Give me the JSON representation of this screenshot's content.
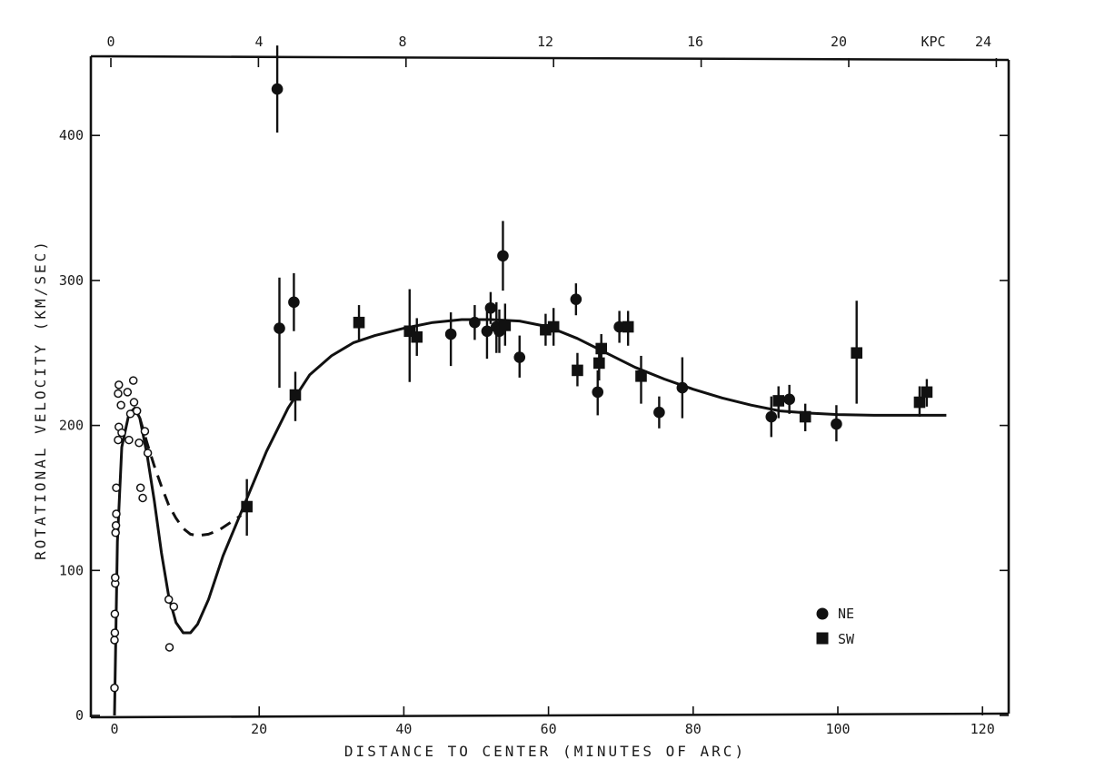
{
  "chart_data": {
    "type": "scatter",
    "xlabel": "DISTANCE TO CENTER (MINUTES OF ARC)",
    "ylabel": "ROTATIONAL VELOCITY (KM/SEC)",
    "x_ticks": [
      "0",
      "20",
      "40",
      "60",
      "80",
      "100",
      "120"
    ],
    "y_ticks": [
      "0",
      "100",
      "200",
      "300",
      "400"
    ],
    "top_axis": {
      "ticks": [
        "0",
        "4",
        "8",
        "12",
        "16",
        "20",
        "KPC",
        "24"
      ],
      "kpc_values": [
        0,
        4,
        8,
        12,
        16,
        20,
        24
      ],
      "unit_label": "KPC"
    },
    "xlim": [
      -2,
      121
    ],
    "ylim": [
      0,
      450
    ],
    "legend_position": "bottom-right",
    "series": [
      {
        "name": "NE",
        "marker": "circle",
        "points": [
          {
            "x": 22.5,
            "y": 432,
            "err": [
              402,
              462
            ]
          },
          {
            "x": 22.8,
            "y": 267,
            "err": [
              226,
              302
            ]
          },
          {
            "x": 24.8,
            "y": 285,
            "err": [
              265,
              305
            ]
          },
          {
            "x": 46.5,
            "y": 263,
            "err": [
              241,
              278
            ]
          },
          {
            "x": 49.8,
            "y": 271,
            "err": [
              259,
              283
            ]
          },
          {
            "x": 51.5,
            "y": 265,
            "err": [
              246,
              280
            ]
          },
          {
            "x": 52.0,
            "y": 281,
            "err": [
              270,
              292
            ]
          },
          {
            "x": 52.8,
            "y": 268,
            "err": [
              250,
              285
            ]
          },
          {
            "x": 53.2,
            "y": 265,
            "err": [
              250,
              280
            ]
          },
          {
            "x": 53.7,
            "y": 317,
            "err": [
              293,
              341
            ]
          },
          {
            "x": 56.0,
            "y": 247,
            "err": [
              233,
              262
            ]
          },
          {
            "x": 63.8,
            "y": 287,
            "err": [
              276,
              298
            ]
          },
          {
            "x": 66.8,
            "y": 223,
            "err": [
              207,
              238
            ]
          },
          {
            "x": 69.8,
            "y": 268,
            "err": [
              257,
              279
            ]
          },
          {
            "x": 75.3,
            "y": 209,
            "err": [
              198,
              220
            ]
          },
          {
            "x": 78.5,
            "y": 226,
            "err": [
              205,
              247
            ]
          },
          {
            "x": 90.8,
            "y": 206,
            "err": [
              192,
              220
            ]
          },
          {
            "x": 93.3,
            "y": 218,
            "err": [
              208,
              228
            ]
          },
          {
            "x": 99.8,
            "y": 201,
            "err": [
              189,
              214
            ]
          }
        ]
      },
      {
        "name": "SW",
        "marker": "square",
        "points": [
          {
            "x": 18.3,
            "y": 144,
            "err": [
              124,
              163
            ]
          },
          {
            "x": 25.0,
            "y": 221,
            "err": [
              203,
              237
            ]
          },
          {
            "x": 33.8,
            "y": 271,
            "err": [
              259,
              283
            ]
          },
          {
            "x": 40.8,
            "y": 265,
            "err": [
              230,
              294
            ]
          },
          {
            "x": 41.8,
            "y": 261,
            "err": [
              248,
              274
            ]
          },
          {
            "x": 54.0,
            "y": 269,
            "err": [
              255,
              284
            ]
          },
          {
            "x": 59.6,
            "y": 266,
            "err": [
              255,
              277
            ]
          },
          {
            "x": 60.7,
            "y": 268,
            "err": [
              255,
              281
            ]
          },
          {
            "x": 64.0,
            "y": 238,
            "err": [
              227,
              250
            ]
          },
          {
            "x": 67.0,
            "y": 243,
            "err": [
              231,
              255
            ]
          },
          {
            "x": 67.3,
            "y": 253,
            "err": [
              244,
              263
            ]
          },
          {
            "x": 71.0,
            "y": 268,
            "err": [
              255,
              279
            ]
          },
          {
            "x": 72.8,
            "y": 234,
            "err": [
              215,
              248
            ]
          },
          {
            "x": 91.8,
            "y": 217,
            "err": [
              205,
              227
            ]
          },
          {
            "x": 95.5,
            "y": 206,
            "err": [
              196,
              215
            ]
          },
          {
            "x": 102.6,
            "y": 250,
            "err": [
              215,
              286
            ]
          },
          {
            "x": 111.3,
            "y": 216,
            "err": [
              206,
              227
            ]
          },
          {
            "x": 112.3,
            "y": 223,
            "err": [
              213,
              232
            ]
          }
        ]
      },
      {
        "name": "",
        "marker": "open-circle",
        "points": [
          {
            "x": 0.0,
            "y": 19
          },
          {
            "x": 0.0,
            "y": 52
          },
          {
            "x": 0.05,
            "y": 57
          },
          {
            "x": 0.05,
            "y": 70
          },
          {
            "x": 0.1,
            "y": 91
          },
          {
            "x": 0.1,
            "y": 95
          },
          {
            "x": 0.15,
            "y": 126
          },
          {
            "x": 0.2,
            "y": 131
          },
          {
            "x": 0.25,
            "y": 139
          },
          {
            "x": 0.25,
            "y": 157
          },
          {
            "x": 0.5,
            "y": 190
          },
          {
            "x": 0.6,
            "y": 199
          },
          {
            "x": 0.5,
            "y": 222
          },
          {
            "x": 0.6,
            "y": 228
          },
          {
            "x": 0.9,
            "y": 214
          },
          {
            "x": 1.0,
            "y": 195
          },
          {
            "x": 1.8,
            "y": 223
          },
          {
            "x": 2.0,
            "y": 190
          },
          {
            "x": 2.2,
            "y": 208
          },
          {
            "x": 2.6,
            "y": 231
          },
          {
            "x": 2.7,
            "y": 216
          },
          {
            "x": 3.1,
            "y": 210
          },
          {
            "x": 3.4,
            "y": 188
          },
          {
            "x": 3.6,
            "y": 157
          },
          {
            "x": 3.9,
            "y": 150
          },
          {
            "x": 4.2,
            "y": 196
          },
          {
            "x": 4.6,
            "y": 181
          },
          {
            "x": 7.5,
            "y": 80
          },
          {
            "x": 8.2,
            "y": 75
          },
          {
            "x": 7.6,
            "y": 47
          }
        ]
      }
    ],
    "curves": [
      {
        "style": "solid",
        "points": [
          [
            0,
            0
          ],
          [
            0.4,
            120
          ],
          [
            1,
            185
          ],
          [
            2,
            208
          ],
          [
            2.8,
            212
          ],
          [
            3.5,
            205
          ],
          [
            4.5,
            180
          ],
          [
            5.5,
            148
          ],
          [
            6.5,
            112
          ],
          [
            7.5,
            82
          ],
          [
            8.5,
            64
          ],
          [
            9.5,
            57
          ],
          [
            10.5,
            57
          ],
          [
            11.5,
            63
          ],
          [
            13,
            80
          ],
          [
            15,
            110
          ],
          [
            18,
            146
          ],
          [
            21,
            182
          ],
          [
            24,
            212
          ],
          [
            27,
            235
          ],
          [
            30,
            248
          ],
          [
            33,
            257
          ],
          [
            36,
            262
          ],
          [
            40,
            267
          ],
          [
            44,
            271
          ],
          [
            48,
            273
          ],
          [
            52,
            273
          ],
          [
            56,
            272
          ],
          [
            60,
            268
          ],
          [
            64,
            260
          ],
          [
            68,
            250
          ],
          [
            72,
            240
          ],
          [
            76,
            232
          ],
          [
            80,
            225
          ],
          [
            84,
            219
          ],
          [
            88,
            214
          ],
          [
            92,
            210
          ],
          [
            96,
            208.5
          ],
          [
            100,
            207.5
          ],
          [
            105,
            207
          ],
          [
            110,
            207
          ],
          [
            115,
            207
          ]
        ]
      },
      {
        "style": "dashed",
        "points": [
          [
            3.5,
            205
          ],
          [
            4.5,
            188
          ],
          [
            5.5,
            172
          ],
          [
            6.5,
            158
          ],
          [
            7.5,
            145
          ],
          [
            8.5,
            136
          ],
          [
            9.5,
            129
          ],
          [
            10.5,
            125
          ],
          [
            11.5,
            124
          ],
          [
            13,
            125
          ],
          [
            14.5,
            128
          ],
          [
            16,
            133
          ],
          [
            17.5,
            138
          ]
        ]
      }
    ],
    "legend": [
      {
        "label": "NE",
        "marker": "circle"
      },
      {
        "label": "SW",
        "marker": "square"
      }
    ]
  }
}
